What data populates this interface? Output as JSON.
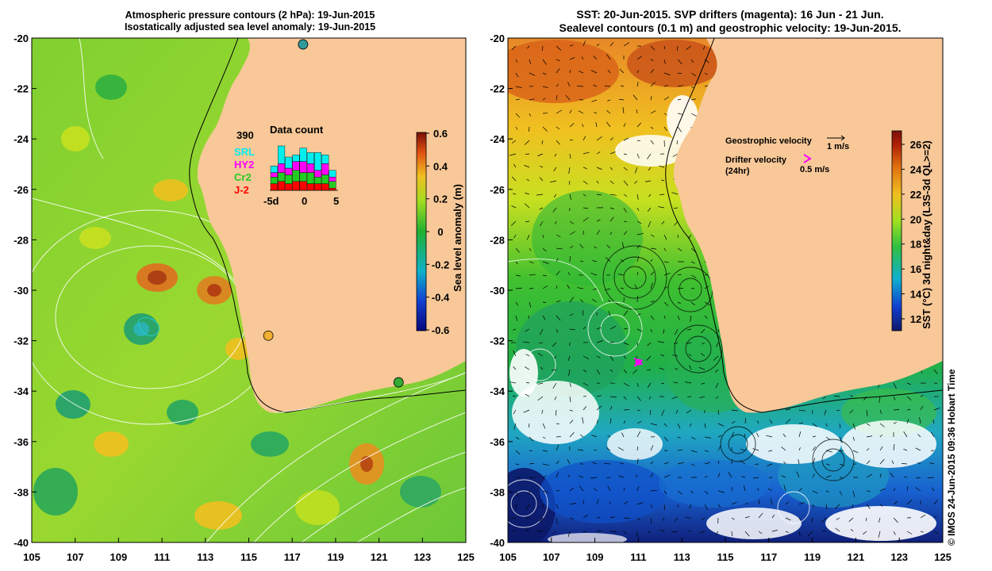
{
  "left_panel": {
    "title_line1": "Atmospheric pressure contours (2 hPa): 19-Jun-2015",
    "title_line2": "Isostatically adjusted sea level anomaly: 19-Jun-2015",
    "colorbar_label": "Sea level anomaly (m)",
    "colorbar_ticks": [
      "0.6",
      "0.4",
      "0.2",
      "0",
      "-0.2",
      "-0.4",
      "-0.6"
    ],
    "inset": {
      "count": "390",
      "title": "Data count",
      "legend": [
        {
          "label": "SRL",
          "color": "#00ffff"
        },
        {
          "label": "HY2",
          "color": "#ff00ff"
        },
        {
          "label": "Cr2",
          "color": "#22cc22"
        },
        {
          "label": "J-2",
          "color": "#ff0000"
        }
      ],
      "x_ticks": [
        "-5d",
        "0",
        "5"
      ],
      "bars": [
        {
          "J2": 3,
          "Cr2": 3,
          "HY2": 2,
          "SRL": 3
        },
        {
          "J2": 4,
          "Cr2": 4,
          "HY2": 4,
          "SRL": 8
        },
        {
          "J2": 3,
          "Cr2": 4,
          "HY2": 3,
          "SRL": 5
        },
        {
          "J2": 4,
          "Cr2": 5,
          "HY2": 4,
          "SRL": 3
        },
        {
          "J2": 4,
          "Cr2": 4,
          "HY2": 5,
          "SRL": 6
        },
        {
          "J2": 3,
          "Cr2": 5,
          "HY2": 4,
          "SRL": 5
        },
        {
          "J2": 3,
          "Cr2": 3,
          "HY2": 3,
          "SRL": 8
        },
        {
          "J2": 3,
          "Cr2": 4,
          "HY2": 5,
          "SRL": 4
        },
        {
          "J2": 1,
          "Cr2": 3,
          "HY2": 2,
          "SRL": 3
        }
      ]
    }
  },
  "right_panel": {
    "title_line1": "SST: 20-Jun-2015. SVP drifters (magenta): 16 Jun - 21 Jun.",
    "title_line2": "Sealevel contours (0.1 m) and geostrophic velocity: 19-Jun-2015.",
    "colorbar_label": "SST (°C) 3d night&day (L3S-3d QL>=2)",
    "colorbar_ticks": [
      "26",
      "24",
      "22",
      "20",
      "18",
      "16",
      "14",
      "12"
    ],
    "legend_geostrophic": "Geostrophic velocity",
    "legend_geostrophic_scale": "1 m/s",
    "legend_drifter_line1": "Drifter velocity",
    "legend_drifter_line2": "(24hr)",
    "legend_drifter_scale": "0.5 m/s"
  },
  "axes": {
    "x_ticks": [
      "105",
      "107",
      "109",
      "111",
      "113",
      "115",
      "117",
      "119",
      "121",
      "123",
      "125"
    ],
    "y_ticks": [
      "-20",
      "-22",
      "-24",
      "-26",
      "-28",
      "-30",
      "-32",
      "-34",
      "-36",
      "-38",
      "-40"
    ],
    "lon_range": [
      105,
      125
    ],
    "lat_range": [
      -40,
      -20
    ]
  },
  "stations": [
    {
      "lon": 115.9,
      "lat": -31.8,
      "color": "#f0b030"
    },
    {
      "lon": 121.9,
      "lat": -33.65,
      "color": "#33aa33"
    },
    {
      "lon": 117.5,
      "lat": -20.25,
      "color": "#339999"
    }
  ],
  "drifter": {
    "lon": 111.0,
    "lat": -32.85
  },
  "copyright": "© IMOS 24-Jun-2015 09:36 Hobart Time"
}
